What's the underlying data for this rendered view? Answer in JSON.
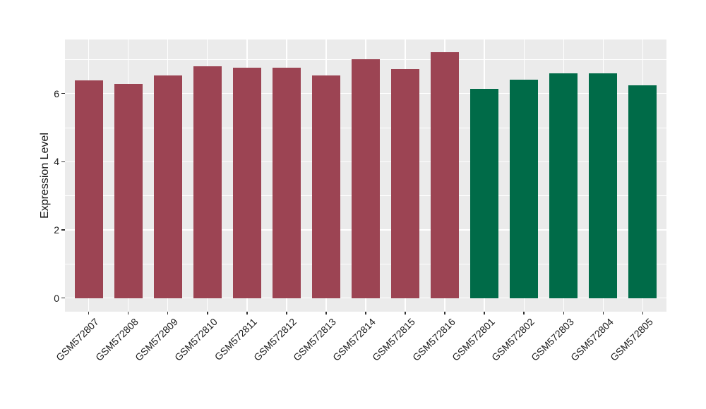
{
  "chart_data": {
    "type": "bar",
    "title": "",
    "xlabel": "",
    "ylabel": "Expression Level",
    "categories": [
      "GSM572807",
      "GSM572808",
      "GSM572809",
      "GSM572810",
      "GSM572811",
      "GSM572812",
      "GSM572813",
      "GSM572814",
      "GSM572815",
      "GSM572816",
      "GSM572801",
      "GSM572802",
      "GSM572803",
      "GSM572804",
      "GSM572805"
    ],
    "values": [
      6.39,
      6.29,
      6.53,
      6.8,
      6.75,
      6.75,
      6.54,
      7.01,
      6.71,
      7.22,
      6.13,
      6.41,
      6.6,
      6.6,
      6.25
    ],
    "bar_colors": [
      "#9C4453",
      "#9C4453",
      "#9C4453",
      "#9C4453",
      "#9C4453",
      "#9C4453",
      "#9C4453",
      "#9C4453",
      "#9C4453",
      "#9C4453",
      "#006B48",
      "#006B48",
      "#006B48",
      "#006B48",
      "#006B48"
    ],
    "yticks": [
      0,
      2,
      4,
      6
    ],
    "yticks_minor": [
      1,
      3,
      5,
      7
    ],
    "ylim": [
      -0.4,
      7.59
    ],
    "grid": true,
    "legend_position": "none",
    "panel_bg": "#EBEBEB",
    "grid_color": "#FFFFFF",
    "tick_color": "#333333",
    "label_color": "#1a1a1a"
  }
}
